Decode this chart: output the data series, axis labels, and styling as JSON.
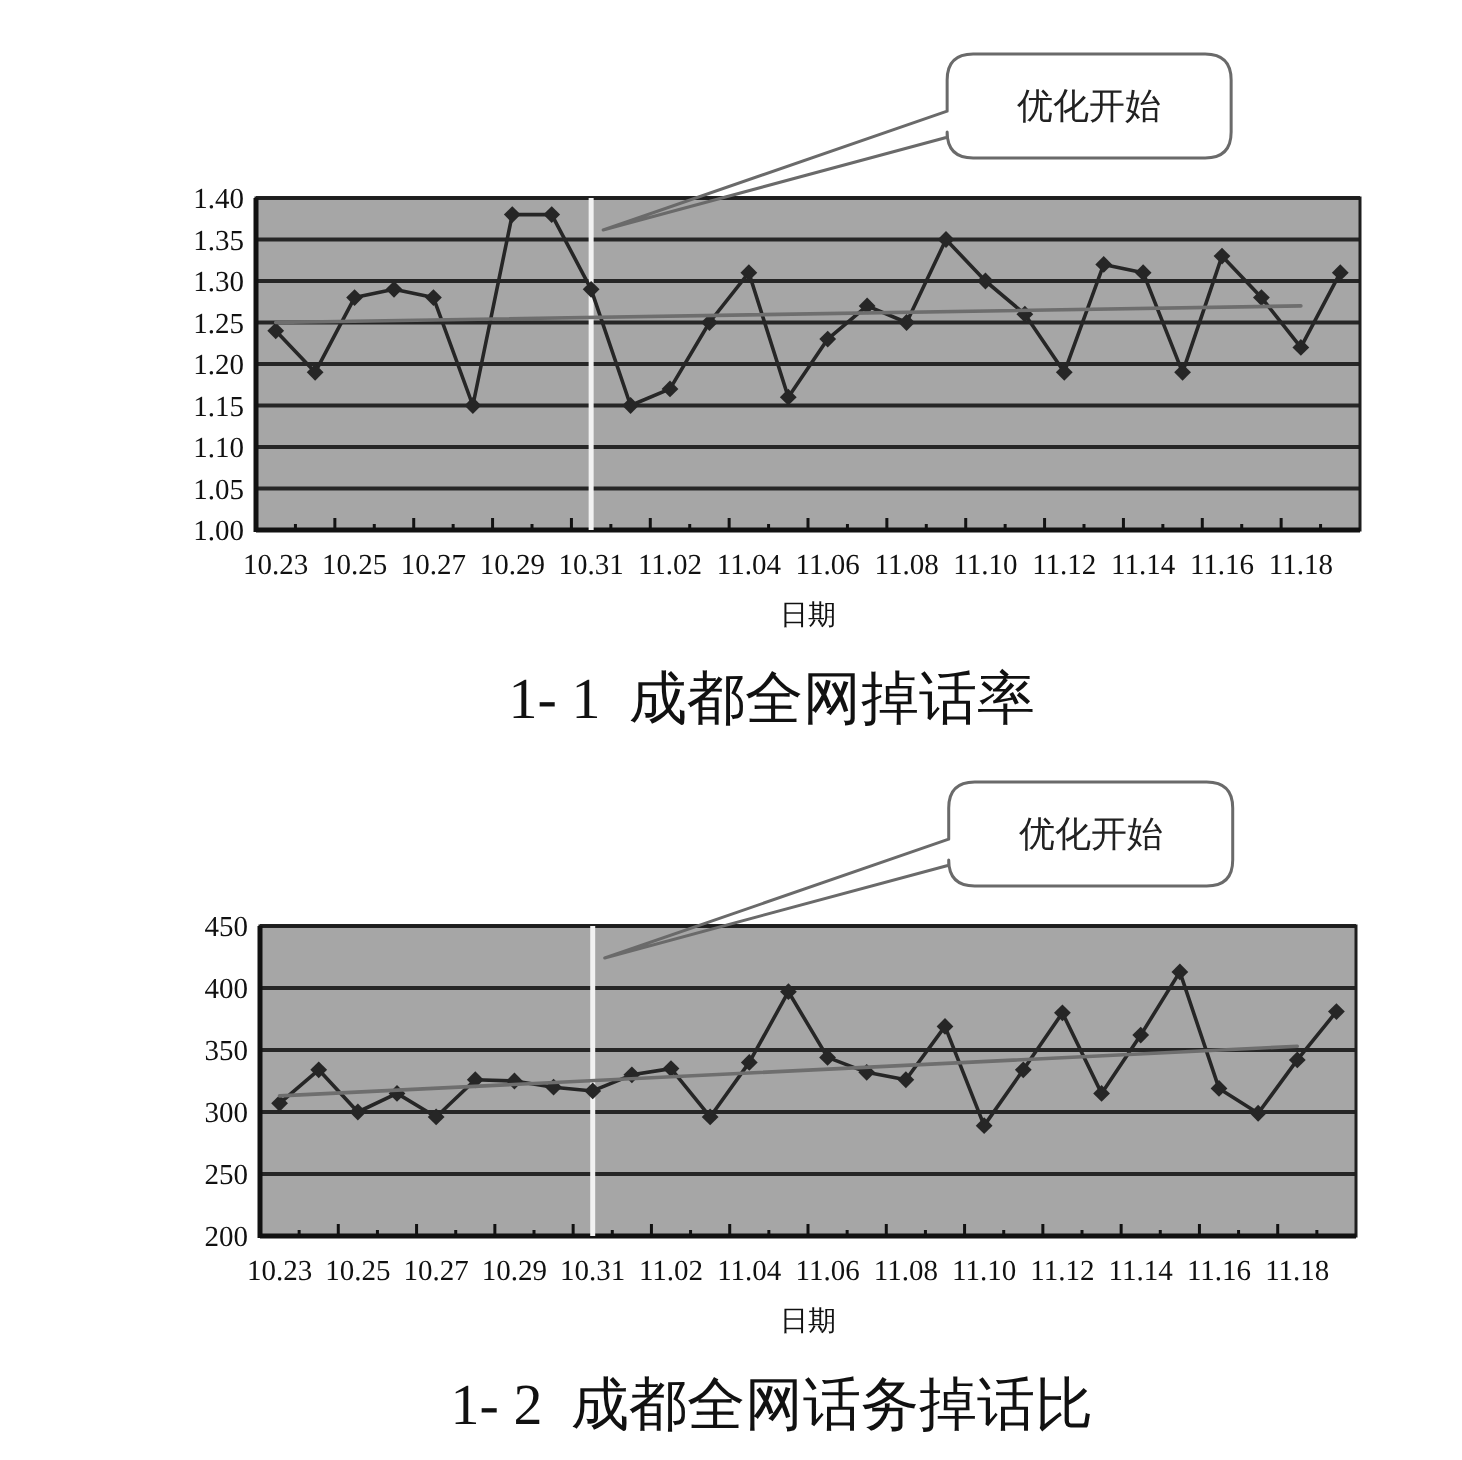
{
  "chart_data": [
    {
      "type": "line",
      "title": "1- 1  成都全网掉话率",
      "xlabel": "日期",
      "annotations": [
        "优化开始"
      ],
      "categories": [
        "10.23",
        null,
        "10.25",
        null,
        "10.27",
        null,
        "10.29",
        null,
        "10.31",
        null,
        "11.02",
        null,
        "11.04",
        null,
        "11.06",
        null,
        "11.08",
        null,
        "11.10",
        null,
        "11.12",
        null,
        "11.14",
        null,
        "11.16",
        null,
        "11.18",
        null
      ],
      "series": [
        {
          "color": "#262626",
          "values": [
            1.24,
            1.19,
            1.28,
            1.29,
            1.28,
            1.15,
            1.38,
            1.38,
            1.29,
            1.15,
            1.17,
            1.25,
            1.31,
            1.16,
            1.23,
            1.27,
            1.25,
            1.35,
            1.3,
            1.26,
            1.19,
            1.32,
            1.31,
            1.19,
            1.33,
            1.28,
            1.22,
            1.31
          ]
        },
        {
          "type": "line",
          "color": "#6e6e6e",
          "marker": "none",
          "x": [
            "10.23",
            "11.18"
          ],
          "values": [
            1.25,
            1.27
          ]
        }
      ],
      "ylim": [
        1,
        1.4
      ],
      "yticks": [
        {
          "value": 1,
          "label": "1.00"
        },
        1.05,
        {
          "value": 1.1,
          "label": "1.10"
        },
        1.15,
        {
          "value": 1.2,
          "label": "1.20"
        },
        1.25,
        {
          "value": 1.3,
          "label": "1.30"
        },
        1.35,
        {
          "value": 1.4,
          "label": "1.40"
        }
      ],
      "grid": "y",
      "marker": "diamond",
      "line_style": "solid",
      "ref_lines": [
        {
          "axis": "x",
          "value": "10.31",
          "color": "#f2f2f2"
        }
      ]
    },
    {
      "type": "line",
      "title": "1- 2  成都全网话务掉话比",
      "xlabel": "日期",
      "annotations": [
        "优化开始"
      ],
      "categories": [
        "10.23",
        null,
        "10.25",
        null,
        "10.27",
        null,
        "10.29",
        null,
        "10.31",
        null,
        "11.02",
        null,
        "11.04",
        null,
        "11.06",
        null,
        "11.08",
        null,
        "11.10",
        null,
        "11.12",
        null,
        "11.14",
        null,
        "11.16",
        null,
        "11.18",
        null
      ],
      "series": [
        {
          "color": "#262626",
          "values": [
            307,
            334,
            300,
            315,
            296,
            326,
            325,
            320,
            317,
            330,
            335,
            296,
            340,
            397,
            344,
            332,
            326,
            369,
            289,
            334,
            380,
            315,
            362,
            413,
            319,
            299,
            342,
            381
          ]
        },
        {
          "type": "line",
          "color": "#6e6e6e",
          "marker": "none",
          "x": [
            "10.23",
            "11.18"
          ],
          "values": [
            313,
            353
          ]
        }
      ],
      "ylim": [
        200,
        450
      ],
      "yticks": [
        200,
        250,
        300,
        350,
        400,
        450
      ],
      "grid": "y",
      "marker": "diamond",
      "line_style": "solid",
      "ref_lines": [
        {
          "axis": "x",
          "value": "10.31",
          "color": "#f2f2f2"
        }
      ]
    }
  ]
}
